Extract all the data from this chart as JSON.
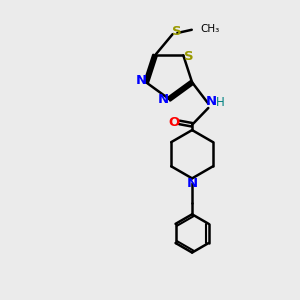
{
  "background_color": "#ebebeb",
  "bond_color": "#000000",
  "atom_colors": {
    "N": "#0000ff",
    "O": "#ff0000",
    "S": "#999900",
    "H": "#008080",
    "C": "#000000"
  },
  "figsize": [
    3.0,
    3.0
  ],
  "dpi": 100,
  "xlim": [
    0,
    10
  ],
  "ylim": [
    0,
    10
  ]
}
